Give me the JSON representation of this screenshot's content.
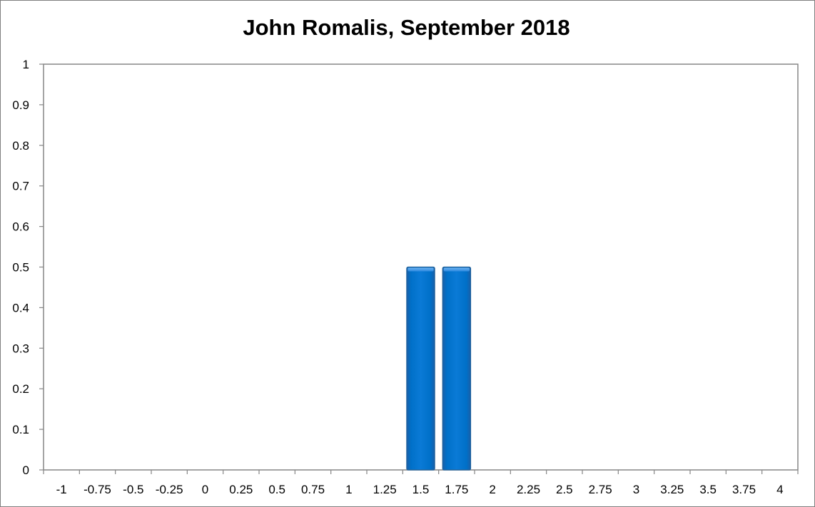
{
  "chart_data": {
    "type": "bar",
    "title": "John Romalis, September 2018",
    "xlabel": "",
    "ylabel": "",
    "categories": [
      "-1",
      "-0.75",
      "-0.5",
      "-0.25",
      "0",
      "0.25",
      "0.5",
      "0.75",
      "1",
      "1.25",
      "1.5",
      "1.75",
      "2",
      "2.25",
      "2.5",
      "2.75",
      "3",
      "3.25",
      "3.5",
      "3.75",
      "4"
    ],
    "values": [
      0,
      0,
      0,
      0,
      0,
      0,
      0,
      0,
      0,
      0,
      0.5,
      0.5,
      0,
      0,
      0,
      0,
      0,
      0,
      0,
      0,
      0
    ],
    "ylim": [
      0,
      1
    ],
    "yticks": [
      "0",
      "0.1",
      "0.2",
      "0.3",
      "0.4",
      "0.5",
      "0.6",
      "0.7",
      "0.8",
      "0.9",
      "1"
    ],
    "grid": false,
    "legend": "none",
    "bar_color": "#0070c0",
    "bar_edge_color": "#1f5f99"
  }
}
